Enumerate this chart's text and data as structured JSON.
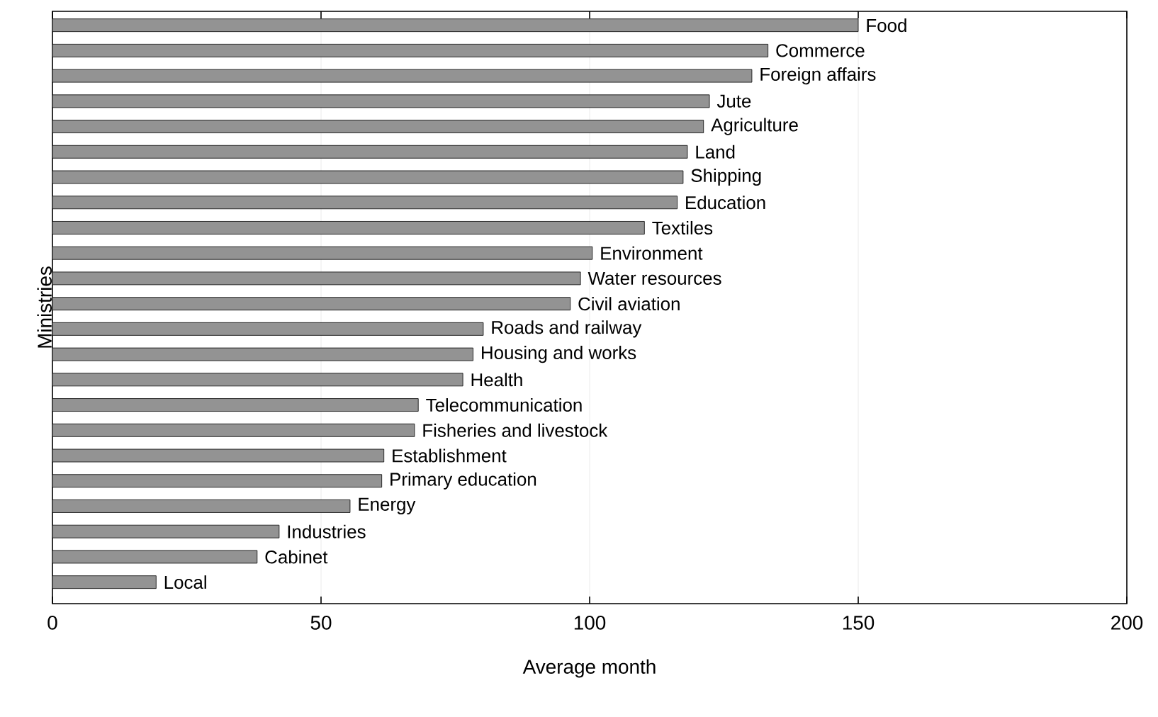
{
  "chart_data": {
    "type": "bar",
    "orientation": "horizontal",
    "xlabel": "Average month",
    "ylabel": "Ministries",
    "categories": [
      "Food",
      "Commerce",
      "Foreign affairs",
      "Jute",
      "Agriculture",
      "Land",
      "Shipping",
      "Education",
      "Textiles",
      "Environment",
      "Water resources",
      "Civil aviation",
      "Roads and railway",
      "Housing and works",
      "Health",
      "Telecommunication",
      "Fisheries and livestock",
      "Establishment",
      "Primary education",
      "Energy",
      "Industries",
      "Cabinet",
      "Local"
    ],
    "values": [
      150,
      133.2,
      130.2,
      122.3,
      121.2,
      118.2,
      117.4,
      116.3,
      110.2,
      100.5,
      98.3,
      96.4,
      80.2,
      78.3,
      76.4,
      68.1,
      67.4,
      61.7,
      61.3,
      55.4,
      42.2,
      38.1,
      19.3
    ],
    "color": "#939393",
    "xlim": [
      0,
      200
    ],
    "xticks": [
      0,
      50,
      100,
      150,
      200
    ],
    "grid": "x"
  }
}
